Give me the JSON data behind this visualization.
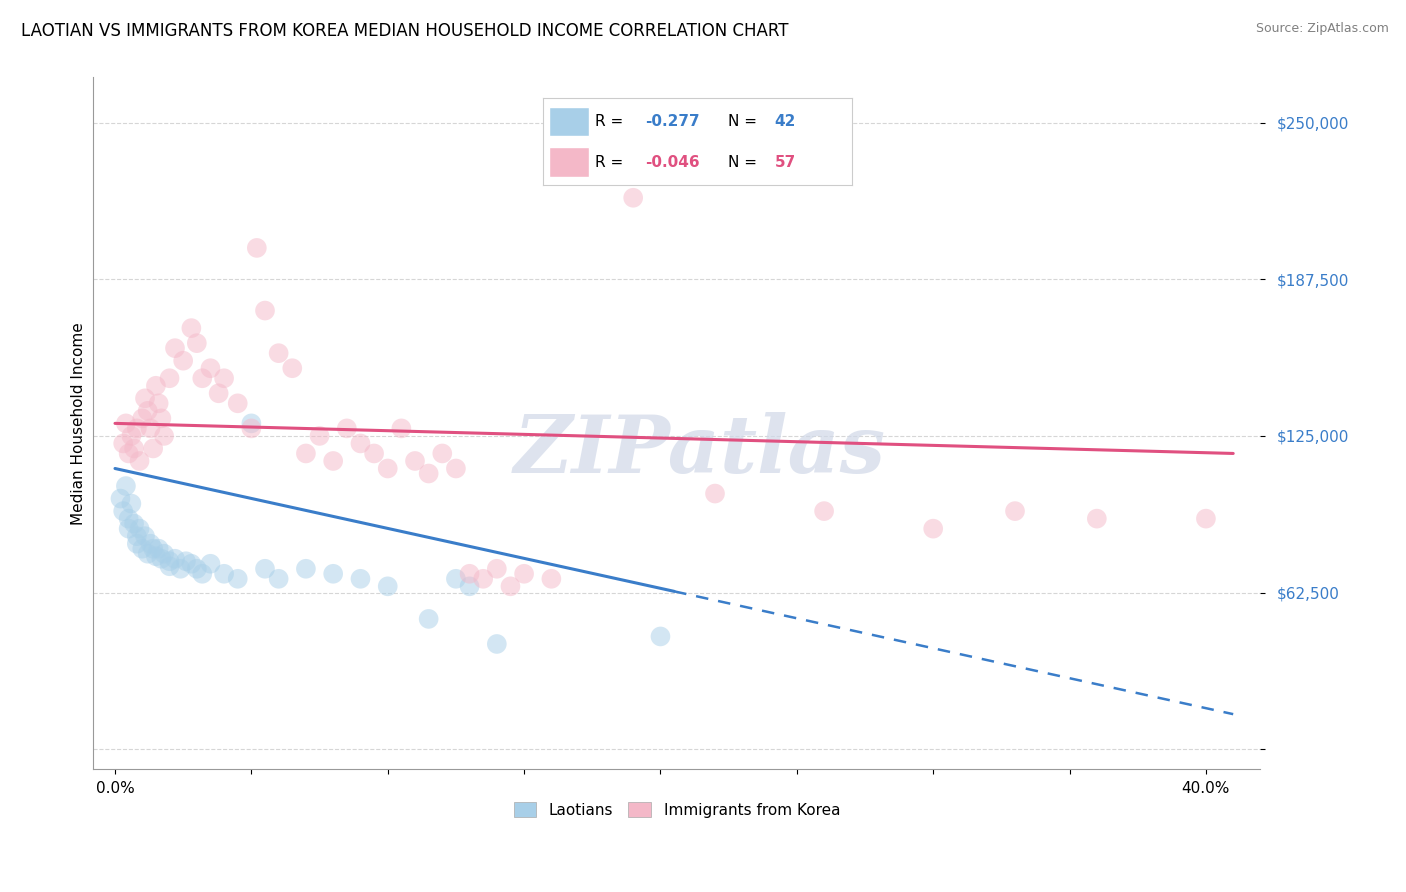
{
  "title": "LAOTIAN VS IMMIGRANTS FROM KOREA MEDIAN HOUSEHOLD INCOME CORRELATION CHART",
  "source": "Source: ZipAtlas.com",
  "xlabel_ticks": [
    "0.0%",
    "",
    "",
    "",
    "",
    "",
    "",
    "",
    "40.0%"
  ],
  "xlabel_tick_vals": [
    0.0,
    5.0,
    10.0,
    15.0,
    20.0,
    25.0,
    30.0,
    35.0,
    40.0
  ],
  "ylabel": "Median Household Income",
  "ytick_vals": [
    0,
    62500,
    125000,
    187500,
    250000
  ],
  "ytick_labels": [
    "",
    "$62,500",
    "$125,000",
    "$187,500",
    "$250,000"
  ],
  "xmin": -0.8,
  "xmax": 42.0,
  "ymin": -8000,
  "ymax": 268000,
  "watermark": "ZIPatlas",
  "legend_r_blue": "-0.277",
  "legend_n_blue": "42",
  "legend_r_pink": "-0.046",
  "legend_n_pink": "57",
  "blue_scatter": [
    [
      0.2,
      100000
    ],
    [
      0.3,
      95000
    ],
    [
      0.4,
      105000
    ],
    [
      0.5,
      92000
    ],
    [
      0.5,
      88000
    ],
    [
      0.6,
      98000
    ],
    [
      0.7,
      90000
    ],
    [
      0.8,
      85000
    ],
    [
      0.8,
      82000
    ],
    [
      0.9,
      88000
    ],
    [
      1.0,
      80000
    ],
    [
      1.1,
      85000
    ],
    [
      1.2,
      78000
    ],
    [
      1.3,
      82000
    ],
    [
      1.4,
      80000
    ],
    [
      1.5,
      77000
    ],
    [
      1.6,
      80000
    ],
    [
      1.7,
      76000
    ],
    [
      1.8,
      78000
    ],
    [
      2.0,
      75000
    ],
    [
      2.0,
      73000
    ],
    [
      2.2,
      76000
    ],
    [
      2.4,
      72000
    ],
    [
      2.6,
      75000
    ],
    [
      2.8,
      74000
    ],
    [
      3.0,
      72000
    ],
    [
      3.2,
      70000
    ],
    [
      3.5,
      74000
    ],
    [
      4.0,
      70000
    ],
    [
      4.5,
      68000
    ],
    [
      5.0,
      130000
    ],
    [
      5.5,
      72000
    ],
    [
      6.0,
      68000
    ],
    [
      7.0,
      72000
    ],
    [
      8.0,
      70000
    ],
    [
      9.0,
      68000
    ],
    [
      10.0,
      65000
    ],
    [
      11.5,
      52000
    ],
    [
      12.5,
      68000
    ],
    [
      13.0,
      65000
    ],
    [
      14.0,
      42000
    ],
    [
      20.0,
      45000
    ]
  ],
  "pink_scatter": [
    [
      0.3,
      122000
    ],
    [
      0.4,
      130000
    ],
    [
      0.5,
      118000
    ],
    [
      0.6,
      125000
    ],
    [
      0.7,
      120000
    ],
    [
      0.8,
      128000
    ],
    [
      0.9,
      115000
    ],
    [
      1.0,
      132000
    ],
    [
      1.1,
      140000
    ],
    [
      1.2,
      135000
    ],
    [
      1.3,
      128000
    ],
    [
      1.4,
      120000
    ],
    [
      1.5,
      145000
    ],
    [
      1.6,
      138000
    ],
    [
      1.7,
      132000
    ],
    [
      1.8,
      125000
    ],
    [
      2.0,
      148000
    ],
    [
      2.2,
      160000
    ],
    [
      2.5,
      155000
    ],
    [
      2.8,
      168000
    ],
    [
      3.0,
      162000
    ],
    [
      3.2,
      148000
    ],
    [
      3.5,
      152000
    ],
    [
      3.8,
      142000
    ],
    [
      4.0,
      148000
    ],
    [
      4.5,
      138000
    ],
    [
      5.0,
      128000
    ],
    [
      5.2,
      200000
    ],
    [
      5.5,
      175000
    ],
    [
      6.0,
      158000
    ],
    [
      6.5,
      152000
    ],
    [
      7.0,
      118000
    ],
    [
      7.5,
      125000
    ],
    [
      8.0,
      115000
    ],
    [
      8.5,
      128000
    ],
    [
      9.0,
      122000
    ],
    [
      9.5,
      118000
    ],
    [
      10.0,
      112000
    ],
    [
      10.5,
      128000
    ],
    [
      11.0,
      115000
    ],
    [
      11.5,
      110000
    ],
    [
      12.0,
      118000
    ],
    [
      12.5,
      112000
    ],
    [
      13.0,
      70000
    ],
    [
      13.5,
      68000
    ],
    [
      14.0,
      72000
    ],
    [
      14.5,
      65000
    ],
    [
      15.0,
      70000
    ],
    [
      16.0,
      68000
    ],
    [
      17.5,
      242000
    ],
    [
      19.0,
      220000
    ],
    [
      22.0,
      102000
    ],
    [
      26.0,
      95000
    ],
    [
      30.0,
      88000
    ],
    [
      33.0,
      95000
    ],
    [
      36.0,
      92000
    ],
    [
      40.0,
      92000
    ]
  ],
  "blue_line_x": [
    0.0,
    20.5,
    41.0
  ],
  "blue_line_y": [
    112000,
    63000,
    14000
  ],
  "blue_solid_end_idx": 1,
  "pink_line_x": [
    0.0,
    41.0
  ],
  "pink_line_y": [
    130000,
    118000
  ],
  "blue_color": "#a8cfe8",
  "pink_color": "#f4b8c8",
  "blue_line_color": "#3a7dc9",
  "pink_line_color": "#e05080",
  "background_color": "#ffffff",
  "grid_color": "#cccccc",
  "title_fontsize": 12,
  "axis_label_fontsize": 11,
  "tick_fontsize": 11,
  "scatter_size": 200,
  "scatter_alpha": 0.5
}
